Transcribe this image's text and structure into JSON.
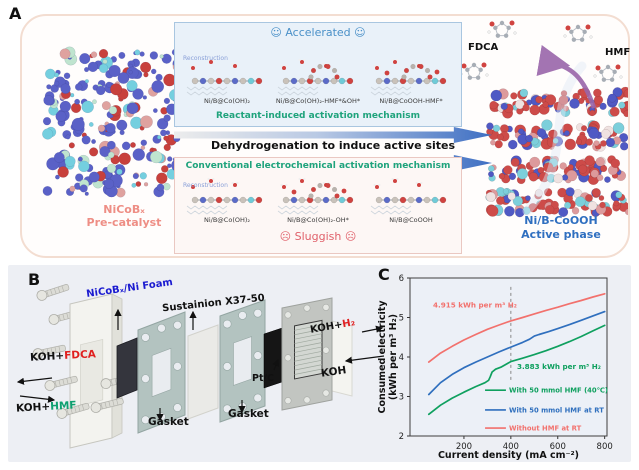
{
  "figure": {
    "panel_a": {
      "label": "A",
      "pre_catalyst": {
        "line1": "NiCoBₓ",
        "line2": "Pre-catalyst"
      },
      "accelerated_box": {
        "smiley": "☺",
        "title": "Accelerated",
        "reconstruction": "Reconstruction",
        "structures": [
          "Ni/B@Co(OH)₂",
          "Ni/B@Co(OH)₂-HMF*&OH*",
          "Ni/B@CoOOH-HMF*"
        ],
        "caption": "Reactant-induced activation mechanism"
      },
      "arrow_text": "Dehydrogenation to induce active sites",
      "sluggish_box": {
        "title": "Conventional electrochemical activation mechanism",
        "reconstruction": "Reconstruction",
        "structures": [
          "Ni/B@Co(OH)₂",
          "Ni/B@Co(OH)₂-OH*",
          "Ni/B@CoOOH"
        ],
        "smiley": "☹",
        "mood": "Sluggish"
      },
      "products": {
        "fdca": "FDCA",
        "hmf": "HMF"
      },
      "active_phase": {
        "line1": "Ni/B-CoOOH",
        "line2": "Active phase"
      },
      "colors": {
        "precatalyst": "#ee8e85",
        "active_phase": "#2f6fc0",
        "mechanism_teal": "#1fa37c",
        "accelerated_blue": "#4a90c8",
        "sluggish_red": "#e0606a",
        "reconstruction_blue": "#8aa0d8"
      }
    },
    "panel_b": {
      "label": "B",
      "labels": {
        "foam": "NiCoBₓ/Ni Foam",
        "membrane": "Sustainion X37-50",
        "inlet_top_koh": "KOH+",
        "inlet_top_species": "FDCA",
        "inlet_bottom_koh": "KOH+",
        "inlet_bottom_species": "HMF",
        "gasket_left": "Gasket",
        "gasket_right": "Gasket",
        "catalyst": "Pt/C",
        "outlet_koh": "KOH+",
        "outlet_species": "H₂",
        "electrolyte": "KOH"
      },
      "colors": {
        "foam_blue": "#1b1bd0",
        "fdca_red": "#e0201f",
        "hmf_green": "#0ea070",
        "h2_red": "#e0201f",
        "black": "#111111"
      }
    },
    "panel_c": {
      "label": "C"
    }
  },
  "chart_data": {
    "type": "line",
    "title": "",
    "xlabel": "Current density (mA cm⁻²)",
    "ylabel_line1": "Consumed electricity",
    "ylabel_line2": "(kWh per m³ H₂)",
    "xlim": [
      -30,
      810
    ],
    "ylim": [
      2,
      6
    ],
    "xticks": [
      200,
      400,
      600,
      800
    ],
    "yticks": [
      2,
      3,
      4,
      5,
      6
    ],
    "grid": false,
    "series": [
      {
        "name": "With 50 mmol HMF (40℃)",
        "color": "#0fa05f",
        "x": [
          50,
          100,
          150,
          200,
          250,
          290,
          305,
          312,
          320,
          335,
          360,
          400,
          450,
          500,
          550,
          600,
          650,
          700,
          750,
          800
        ],
        "y": [
          2.55,
          2.78,
          2.96,
          3.11,
          3.25,
          3.35,
          3.41,
          3.5,
          3.62,
          3.69,
          3.75,
          3.883,
          3.97,
          4.06,
          4.16,
          4.27,
          4.39,
          4.52,
          4.66,
          4.8
        ]
      },
      {
        "name": "With 50 mmol HMF at RT",
        "color": "#2f6fbe",
        "x": [
          50,
          100,
          150,
          200,
          250,
          300,
          350,
          400,
          450,
          480,
          500,
          520,
          560,
          600,
          650,
          700,
          750,
          800
        ],
        "y": [
          3.05,
          3.35,
          3.56,
          3.73,
          3.87,
          4.0,
          4.13,
          4.25,
          4.37,
          4.45,
          4.53,
          4.57,
          4.64,
          4.72,
          4.82,
          4.93,
          5.04,
          5.15
        ]
      },
      {
        "name": "Without HMF at RT",
        "color": "#f2716d",
        "x": [
          50,
          100,
          150,
          200,
          250,
          300,
          350,
          400,
          450,
          500,
          550,
          600,
          650,
          700,
          750,
          800
        ],
        "y": [
          3.87,
          4.1,
          4.27,
          4.43,
          4.57,
          4.7,
          4.81,
          4.915,
          5.0,
          5.09,
          5.18,
          5.26,
          5.35,
          5.43,
          5.52,
          5.6
        ]
      }
    ],
    "dashed_line": {
      "x": 400,
      "y_from": 3.42,
      "y_to": 5.82
    },
    "annotations": [
      {
        "text": "4.915 kWh per m³ H₂",
        "color": "#f2716d",
        "x": 68,
        "y": 5.25
      },
      {
        "text": "3.883 kWh per m³ H₂",
        "color": "#0fa05f",
        "x": 426,
        "y": 3.7
      }
    ],
    "legend": {
      "position": "inside-bottom-right",
      "swatch_x": [
        290,
        379
      ],
      "text_x": 392,
      "row_y": [
        3.16,
        2.66,
        2.2
      ]
    }
  }
}
